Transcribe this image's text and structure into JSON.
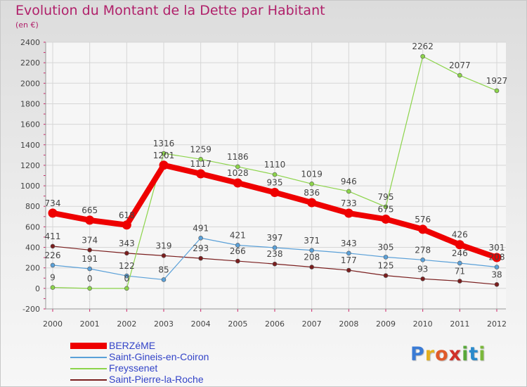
{
  "header": {
    "title": "Evolution du Montant de la Dette par Habitant",
    "subtitle": "(en €)"
  },
  "logo": {
    "letters": [
      "P",
      "r",
      "o",
      "x",
      "i",
      "t",
      "i"
    ]
  },
  "chart_data": {
    "type": "line",
    "title": "Evolution du Montant de la Dette par Habitant",
    "subtitle": "(en €)",
    "xlabel": "",
    "ylabel": "",
    "x": [
      "2000",
      "2001",
      "2002",
      "2003",
      "2004",
      "2005",
      "2006",
      "2007",
      "2008",
      "2009",
      "2010",
      "2011",
      "2012"
    ],
    "ylim": [
      -200,
      2400
    ],
    "yticks": [
      -200,
      0,
      200,
      400,
      600,
      800,
      1000,
      1200,
      1400,
      1600,
      1800,
      2000,
      2200,
      2400
    ],
    "grid": true,
    "legend_position": "bottom-left",
    "series": [
      {
        "name": "BERZéME",
        "color": "#ee0000",
        "values": [
          734,
          665,
          618,
          1201,
          1117,
          1028,
          935,
          836,
          733,
          675,
          576,
          426,
          301
        ],
        "labels": [
          "734",
          "665",
          "618",
          "1201",
          "1117",
          "1028",
          "935",
          "836",
          "733",
          "675",
          "576",
          "426",
          "301"
        ]
      },
      {
        "name": "Saint-Gineis-en-Coiron",
        "color": "#5aa0d8",
        "values": [
          226,
          191,
          122,
          85,
          491,
          421,
          397,
          371,
          343,
          305,
          278,
          246,
          208
        ],
        "labels": [
          "226",
          "191",
          "122",
          "85",
          "491",
          "421",
          "397",
          "371",
          "343",
          "305",
          "278",
          "246",
          "208"
        ]
      },
      {
        "name": "Freyssenet",
        "color": "#8cd44a",
        "values": [
          9,
          0,
          0,
          1316,
          1259,
          1186,
          1110,
          1019,
          946,
          795,
          2262,
          2077,
          1927
        ],
        "labels": [
          "9",
          "0",
          "0",
          "1316",
          "1259",
          "1186",
          "1110",
          "1019",
          "946",
          "795",
          "2262",
          "2077",
          "1927"
        ]
      },
      {
        "name": "Saint-Pierre-la-Roche",
        "color": "#7a1e1e",
        "values": [
          411,
          374,
          343,
          319,
          293,
          266,
          238,
          208,
          177,
          125,
          93,
          71,
          38
        ],
        "labels": [
          "411",
          "374",
          "343",
          "319",
          "293",
          "266",
          "238",
          "208",
          "177",
          "125",
          "93",
          "71",
          "38"
        ]
      }
    ]
  }
}
